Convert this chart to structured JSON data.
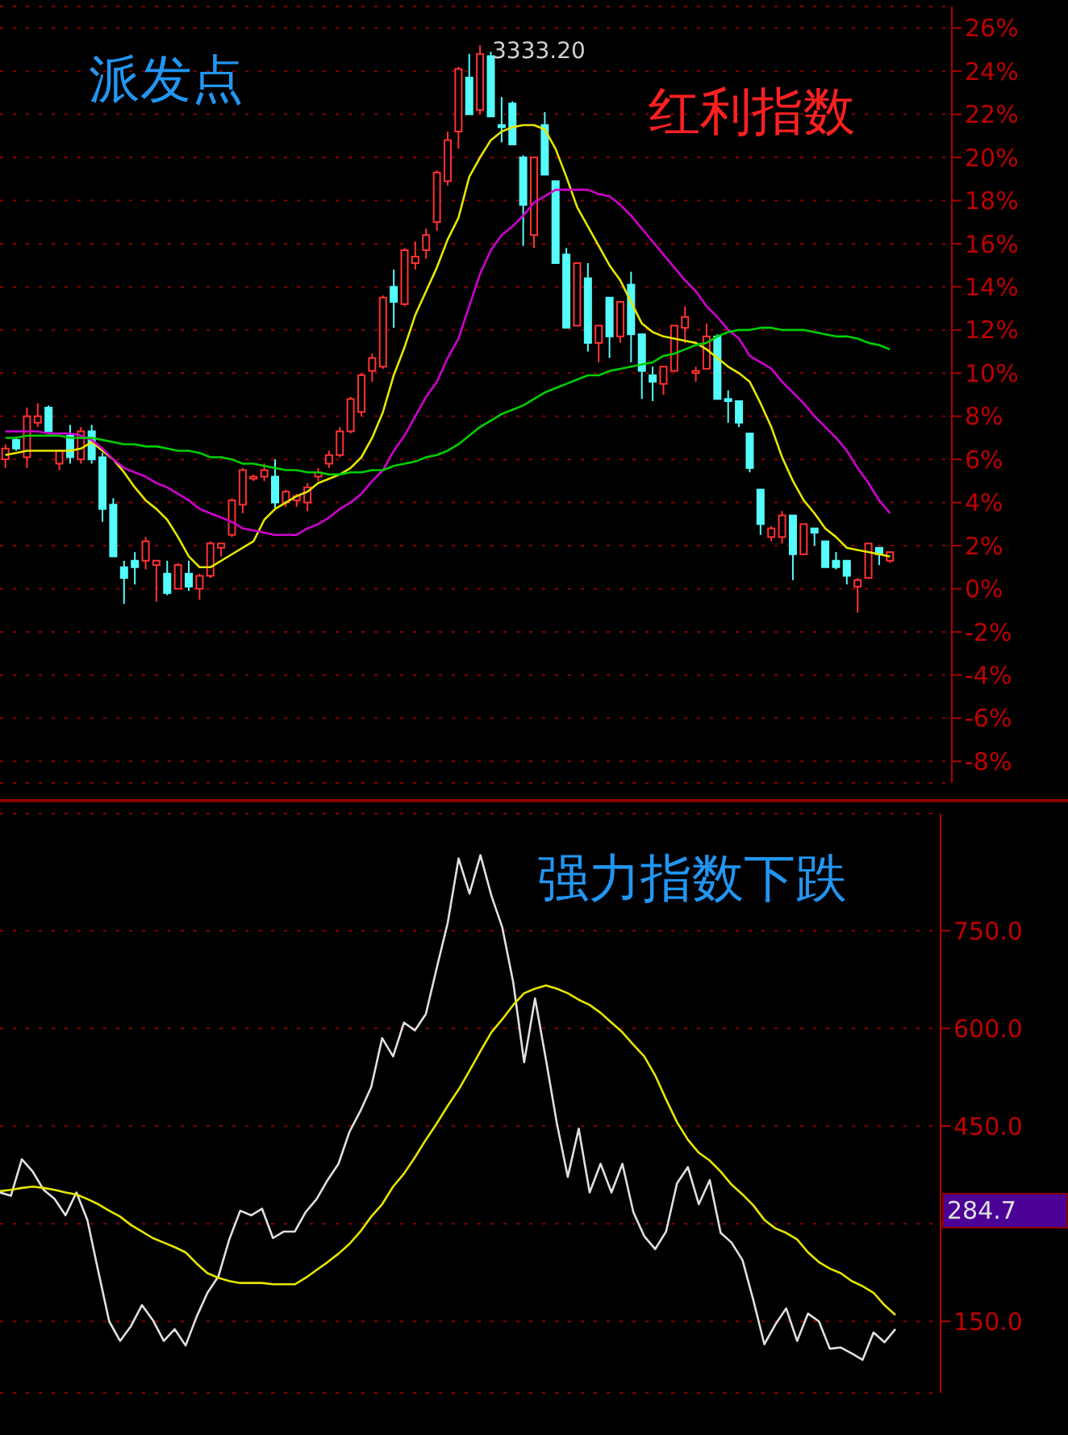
{
  "chart_data": [
    {
      "type": "candlestick",
      "title": "红利指数",
      "annotations": [
        "派发点",
        "3333.20"
      ],
      "categories": [
        null,
        null,
        null,
        null,
        null,
        null,
        null,
        null,
        null,
        null,
        null,
        null,
        null,
        null,
        null,
        null,
        null,
        null,
        null,
        null,
        null,
        null,
        null,
        null,
        null,
        null,
        null,
        null,
        null,
        null,
        null,
        null,
        null,
        null,
        null,
        null,
        null,
        null,
        null,
        null,
        null,
        null,
        null,
        null,
        null,
        null,
        null,
        null,
        null,
        null,
        null,
        null,
        null,
        null,
        null,
        null,
        null,
        null,
        null,
        null,
        null,
        null,
        null,
        null,
        null,
        null,
        null,
        null,
        null,
        null,
        null,
        null,
        null,
        null,
        null,
        null,
        null,
        null,
        null,
        null,
        null,
        null,
        null
      ],
      "ohlc": [
        [
          6.0,
          6.7,
          5.6,
          6.5
        ],
        [
          6.9,
          7.0,
          6.4,
          6.5
        ],
        [
          6.1,
          8.4,
          5.6,
          8.0
        ],
        [
          7.7,
          8.6,
          7.5,
          8.0
        ],
        [
          8.4,
          8.5,
          7.3,
          7.3
        ],
        [
          5.8,
          6.4,
          5.5,
          6.4
        ],
        [
          7.1,
          7.6,
          5.8,
          6.1
        ],
        [
          6.0,
          7.5,
          5.8,
          7.3
        ],
        [
          7.3,
          7.6,
          5.8,
          6.0
        ],
        [
          6.1,
          6.3,
          3.1,
          3.7
        ],
        [
          3.9,
          4.2,
          1.5,
          1.5
        ],
        [
          1.0,
          1.3,
          -0.7,
          0.5
        ],
        [
          1.3,
          1.7,
          0.2,
          1.0
        ],
        [
          1.3,
          2.4,
          0.9,
          2.2
        ],
        [
          1.1,
          1.3,
          -0.6,
          1.3
        ],
        [
          0.7,
          1.3,
          -0.3,
          -0.2
        ],
        [
          0.0,
          1.2,
          0.0,
          1.1
        ],
        [
          0.7,
          1.3,
          -0.1,
          0.1
        ],
        [
          0.0,
          0.7,
          -0.5,
          0.6
        ],
        [
          0.6,
          2.2,
          0.5,
          2.1
        ],
        [
          1.9,
          2.1,
          1.5,
          2.1
        ],
        [
          2.5,
          4.2,
          2.4,
          4.1
        ],
        [
          3.9,
          5.6,
          3.5,
          5.5
        ],
        [
          5.1,
          5.3,
          5.0,
          5.2
        ],
        [
          5.2,
          5.8,
          5.0,
          5.5
        ],
        [
          5.2,
          6.0,
          3.7,
          4.0
        ],
        [
          4.0,
          4.6,
          3.8,
          4.5
        ],
        [
          4.1,
          4.4,
          3.8,
          4.3
        ],
        [
          4.0,
          4.9,
          3.6,
          4.7
        ],
        [
          5.2,
          5.6,
          5.0,
          5.4
        ],
        [
          5.8,
          6.4,
          5.6,
          6.2
        ],
        [
          6.2,
          7.5,
          6.1,
          7.3
        ],
        [
          7.3,
          8.9,
          7.2,
          8.8
        ],
        [
          8.2,
          10.0,
          8.0,
          9.9
        ],
        [
          10.1,
          10.9,
          9.6,
          10.7
        ],
        [
          10.3,
          13.6,
          10.2,
          13.5
        ],
        [
          14.0,
          14.8,
          12.1,
          13.3
        ],
        [
          13.2,
          15.8,
          13.1,
          15.7
        ],
        [
          15.1,
          16.1,
          14.8,
          15.4
        ],
        [
          15.7,
          16.7,
          15.3,
          16.4
        ],
        [
          17.0,
          19.4,
          16.6,
          19.3
        ],
        [
          18.9,
          21.2,
          18.7,
          20.8
        ],
        [
          21.2,
          24.2,
          20.4,
          24.1
        ],
        [
          23.7,
          24.8,
          22.0,
          22.0
        ],
        [
          22.2,
          25.2,
          22.0,
          24.8
        ],
        [
          24.7,
          24.9,
          21.9,
          21.9
        ],
        [
          21.5,
          22.8,
          20.7,
          21.4
        ],
        [
          22.5,
          22.6,
          20.6,
          20.6
        ],
        [
          20.0,
          20.1,
          15.9,
          17.8
        ],
        [
          16.4,
          20.0,
          15.8,
          20.0
        ],
        [
          21.5,
          22.1,
          19.2,
          19.2
        ],
        [
          18.9,
          18.9,
          15.1,
          15.1
        ],
        [
          15.5,
          15.8,
          12.1,
          12.1
        ],
        [
          12.2,
          15.1,
          12.2,
          15.1
        ],
        [
          14.4,
          15.1,
          11.0,
          11.4
        ],
        [
          11.4,
          12.2,
          10.5,
          12.2
        ],
        [
          13.5,
          13.5,
          10.7,
          11.7
        ],
        [
          11.7,
          13.3,
          11.4,
          13.3
        ],
        [
          14.1,
          14.7,
          10.5,
          11.8
        ],
        [
          11.8,
          11.8,
          8.8,
          10.1
        ],
        [
          9.9,
          10.3,
          8.7,
          9.6
        ],
        [
          9.5,
          10.3,
          9.0,
          10.3
        ],
        [
          10.1,
          12.2,
          10.1,
          12.2
        ],
        [
          12.1,
          13.1,
          11.4,
          12.6
        ],
        [
          10.0,
          10.3,
          9.6,
          10.1
        ],
        [
          10.2,
          12.3,
          10.2,
          11.7
        ],
        [
          11.7,
          11.8,
          8.8,
          8.8
        ],
        [
          8.8,
          9.2,
          7.7,
          8.7
        ],
        [
          8.7,
          8.7,
          7.5,
          7.7
        ],
        [
          7.2,
          7.2,
          5.4,
          5.6
        ],
        [
          4.6,
          4.6,
          2.5,
          3.0
        ],
        [
          2.4,
          2.9,
          2.2,
          2.8
        ],
        [
          2.4,
          3.6,
          2.1,
          3.4
        ],
        [
          3.4,
          3.4,
          0.4,
          1.6
        ],
        [
          1.6,
          3.0,
          1.6,
          3.0
        ],
        [
          2.8,
          2.8,
          2.0,
          2.6
        ],
        [
          2.2,
          2.2,
          1.0,
          1.0
        ],
        [
          1.3,
          1.7,
          0.9,
          1.0
        ],
        [
          1.3,
          1.3,
          0.2,
          0.6
        ],
        [
          0.1,
          0.5,
          -1.1,
          0.4
        ],
        [
          0.5,
          2.1,
          0.5,
          2.1
        ],
        [
          1.9,
          1.9,
          1.1,
          1.6
        ],
        [
          1.3,
          1.7,
          1.2,
          1.7
        ]
      ],
      "series": [
        {
          "type": "line",
          "color": "#e6e600",
          "values": [
            6.2,
            6.3,
            6.4,
            6.4,
            6.4,
            6.4,
            6.4,
            6.5,
            6.8,
            6.4,
            6.0,
            5.4,
            4.7,
            4.1,
            3.7,
            3.2,
            2.4,
            1.5,
            1.0,
            1.0,
            1.3,
            1.6,
            1.9,
            2.2,
            3.2,
            3.7,
            4.0,
            4.3,
            4.5,
            4.9,
            5.1,
            5.3,
            5.6,
            6.1,
            7.0,
            8.2,
            9.9,
            11.2,
            12.7,
            13.8,
            14.9,
            16.2,
            17.2,
            19.1,
            20.0,
            20.8,
            21.2,
            21.4,
            21.5,
            21.5,
            21.3,
            20.4,
            19.1,
            17.7,
            16.8,
            15.9,
            15.0,
            14.3,
            13.3,
            12.3,
            11.9,
            11.7,
            11.6,
            11.5,
            11.4,
            11.1,
            10.7,
            10.3,
            10.0,
            9.6,
            8.6,
            7.5,
            6.1,
            5.0,
            4.1,
            3.5,
            2.8,
            2.4,
            1.9,
            1.8,
            1.7,
            1.6,
            1.5
          ]
        },
        {
          "type": "line",
          "color": "#d000d0",
          "values": [
            7.3,
            7.3,
            7.3,
            7.3,
            7.2,
            7.2,
            7.2,
            7.1,
            6.9,
            6.5,
            6.0,
            5.6,
            5.4,
            5.2,
            4.9,
            4.7,
            4.4,
            4.1,
            3.7,
            3.5,
            3.3,
            3.1,
            2.8,
            2.7,
            2.6,
            2.5,
            2.5,
            2.5,
            2.8,
            3.0,
            3.3,
            3.7,
            4.0,
            4.4,
            5.0,
            5.5,
            6.4,
            7.1,
            8.0,
            8.9,
            9.6,
            10.7,
            11.6,
            13.1,
            14.6,
            15.7,
            16.4,
            16.8,
            17.3,
            17.9,
            18.2,
            18.5,
            18.5,
            18.5,
            18.5,
            18.3,
            18.2,
            17.8,
            17.3,
            16.7,
            16.1,
            15.5,
            14.9,
            14.3,
            13.8,
            13.1,
            12.6,
            12.0,
            11.6,
            10.8,
            10.5,
            10.2,
            9.6,
            9.1,
            8.6,
            8.0,
            7.5,
            7.0,
            6.4,
            5.6,
            4.9,
            4.1,
            3.5
          ]
        },
        {
          "type": "line",
          "color": "#00d000",
          "values": [
            7.0,
            7.0,
            7.1,
            7.1,
            7.1,
            7.1,
            7.0,
            7.0,
            7.0,
            6.9,
            6.8,
            6.7,
            6.7,
            6.6,
            6.6,
            6.5,
            6.4,
            6.4,
            6.3,
            6.1,
            6.1,
            6.0,
            5.8,
            5.8,
            5.7,
            5.6,
            5.5,
            5.5,
            5.4,
            5.4,
            5.3,
            5.3,
            5.4,
            5.4,
            5.5,
            5.5,
            5.7,
            5.8,
            5.9,
            6.1,
            6.2,
            6.4,
            6.7,
            7.1,
            7.5,
            7.8,
            8.1,
            8.3,
            8.5,
            8.8,
            9.1,
            9.3,
            9.5,
            9.7,
            9.9,
            9.9,
            10.1,
            10.2,
            10.3,
            10.4,
            10.5,
            10.8,
            10.9,
            11.1,
            11.3,
            11.4,
            11.7,
            11.9,
            12.0,
            12.0,
            12.1,
            12.1,
            12.0,
            12.0,
            12.0,
            11.9,
            11.8,
            11.7,
            11.7,
            11.6,
            11.4,
            11.3,
            11.1
          ]
        }
      ],
      "ylim": [
        -9,
        27
      ],
      "yticks": [
        {
          "value": 26,
          "label": "26%"
        },
        {
          "value": 24,
          "label": "24%"
        },
        {
          "value": 22,
          "label": "22%"
        },
        {
          "value": 20,
          "label": "20%"
        },
        {
          "value": 18,
          "label": "18%"
        },
        {
          "value": 16,
          "label": "16%"
        },
        {
          "value": 14,
          "label": "14%"
        },
        {
          "value": 12,
          "label": "12%"
        },
        {
          "value": 10,
          "label": "10%"
        },
        {
          "value": 8,
          "label": "8%"
        },
        {
          "value": 6,
          "label": "6%"
        },
        {
          "value": 4,
          "label": "4%"
        },
        {
          "value": 2,
          "label": "2%"
        },
        {
          "value": 0,
          "label": "0%"
        },
        {
          "value": -2,
          "label": "-2%"
        },
        {
          "value": -4,
          "label": "-4%"
        },
        {
          "value": -6,
          "label": "-6%"
        },
        {
          "value": -8,
          "label": "-8%"
        }
      ],
      "grid": "y",
      "tick_labels": "y"
    },
    {
      "type": "line",
      "title": "强力指数下跌",
      "categories": [
        null,
        null,
        null,
        null,
        null,
        null,
        null,
        null,
        null,
        null,
        null,
        null,
        null,
        null,
        null,
        null,
        null,
        null,
        null,
        null,
        null,
        null,
        null,
        null,
        null,
        null,
        null,
        null,
        null,
        null,
        null,
        null,
        null,
        null,
        null,
        null,
        null,
        null,
        null,
        null,
        null,
        null,
        null,
        null,
        null,
        null,
        null,
        null,
        null,
        null,
        null,
        null,
        null,
        null,
        null,
        null,
        null,
        null,
        null,
        null,
        null,
        null,
        null,
        null,
        null,
        null,
        null,
        null,
        null,
        null,
        null,
        null,
        null,
        null,
        null,
        null,
        null,
        null,
        null,
        null,
        null,
        null,
        null
      ],
      "series": [
        {
          "color": "#e0e0e0",
          "values": [
            348,
            343,
            399,
            380,
            352,
            338,
            313,
            348,
            306,
            227,
            150,
            120,
            143,
            175,
            152,
            120,
            138,
            113,
            157,
            194,
            219,
            276,
            320,
            313,
            323,
            278,
            288,
            288,
            318,
            338,
            367,
            392,
            441,
            473,
            510,
            585,
            557,
            609,
            597,
            622,
            693,
            762,
            861,
            807,
            866,
            804,
            755,
            671,
            548,
            646,
            552,
            454,
            372,
            446,
            348,
            392,
            348,
            392,
            318,
            281,
            261,
            288,
            362,
            387,
            330,
            367,
            286,
            271,
            244,
            182,
            115,
            145,
            170,
            120,
            162,
            150,
            108,
            110,
            101,
            91,
            133,
            118,
            138
          ]
        },
        {
          "color": "#e6e600",
          "values": [
            350,
            352,
            355,
            357,
            355,
            352,
            348,
            345,
            338,
            330,
            320,
            311,
            298,
            288,
            278,
            271,
            264,
            256,
            239,
            224,
            217,
            212,
            209,
            209,
            209,
            207,
            207,
            207,
            217,
            229,
            241,
            254,
            269,
            288,
            311,
            330,
            357,
            377,
            402,
            429,
            454,
            481,
            506,
            535,
            565,
            594,
            614,
            636,
            654,
            661,
            666,
            661,
            654,
            644,
            636,
            624,
            609,
            594,
            575,
            557,
            528,
            491,
            456,
            429,
            409,
            397,
            380,
            360,
            345,
            328,
            306,
            293,
            286,
            276,
            256,
            241,
            231,
            224,
            212,
            204,
            194,
            175,
            160
          ]
        }
      ],
      "ylim": [
        40,
        930
      ],
      "yticks": [
        {
          "value": 150,
          "label": "150.0"
        },
        {
          "value": 300,
          "label": null
        },
        {
          "value": 450,
          "label": "450.0"
        },
        {
          "value": 600,
          "label": "600.0"
        },
        {
          "value": 750,
          "label": "750.0"
        }
      ],
      "annotations": [
        "284.7"
      ],
      "grid": "y",
      "tick_labels": "y"
    }
  ]
}
